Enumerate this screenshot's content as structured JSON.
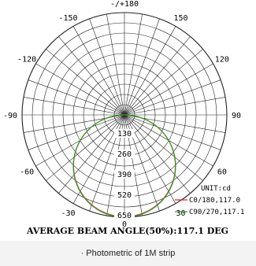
{
  "chart_data": {
    "type": "polar",
    "unit_label": "UNIT:cd",
    "angle_labels": [
      "-/+180",
      "150",
      "120",
      "90",
      "60",
      "30",
      "0",
      "-30",
      "-60",
      "-90",
      "-120",
      "-150"
    ],
    "radial_labels": [
      "130",
      "260",
      "390",
      "520",
      "650"
    ],
    "radial_max": 650,
    "series": [
      {
        "name": "C0/180,117.0",
        "color": "#e02020",
        "beam_angle": 117.0
      },
      {
        "name": "C90/270,117.1",
        "color": "#2ca02c",
        "beam_angle": 117.1
      }
    ],
    "peak_intensity_estimate": 650
  },
  "footer": {
    "average_text": "AVERAGE BEAM ANGLE(50%):117.1 DEG",
    "caption": "· Photometric of 1M strip"
  }
}
